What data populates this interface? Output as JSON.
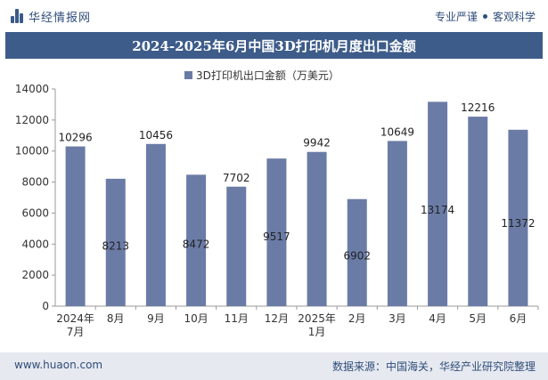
{
  "header": {
    "brand": "华经情报网",
    "slogan_1": "专业严谨",
    "slogan_2": "客观科学"
  },
  "colors": {
    "title_bar": "#3d5c8a",
    "bar": "#6a7ba6",
    "footer_bg": "#e6e9ef"
  },
  "chart_data": {
    "type": "bar",
    "title": "2024-2025年6月中国3D打印机月度出口金额",
    "categories": [
      "2024年\n7月",
      "8月",
      "9月",
      "10月",
      "11月",
      "12月",
      "2025年\n1月",
      "2月",
      "3月",
      "4月",
      "5月",
      "6月"
    ],
    "series": [
      {
        "name": "3D打印机出口金额（万美元）",
        "values": [
          10296,
          8213,
          10456,
          8472,
          7702,
          9517,
          9942,
          6902,
          10649,
          13174,
          12216,
          11372
        ]
      }
    ],
    "label_placement": [
      "above",
      "inside",
      "above",
      "inside",
      "above",
      "inside",
      "above",
      "inside",
      "above",
      "inside",
      "above",
      "inside"
    ],
    "ylim": [
      0,
      14000
    ],
    "yticks": [
      0,
      2000,
      4000,
      6000,
      8000,
      10000,
      12000,
      14000
    ],
    "legend_position": "top-center",
    "grid": false
  },
  "footer": {
    "website": "www.huaon.com",
    "source": "数据来源：中国海关，华经产业研究院整理"
  }
}
